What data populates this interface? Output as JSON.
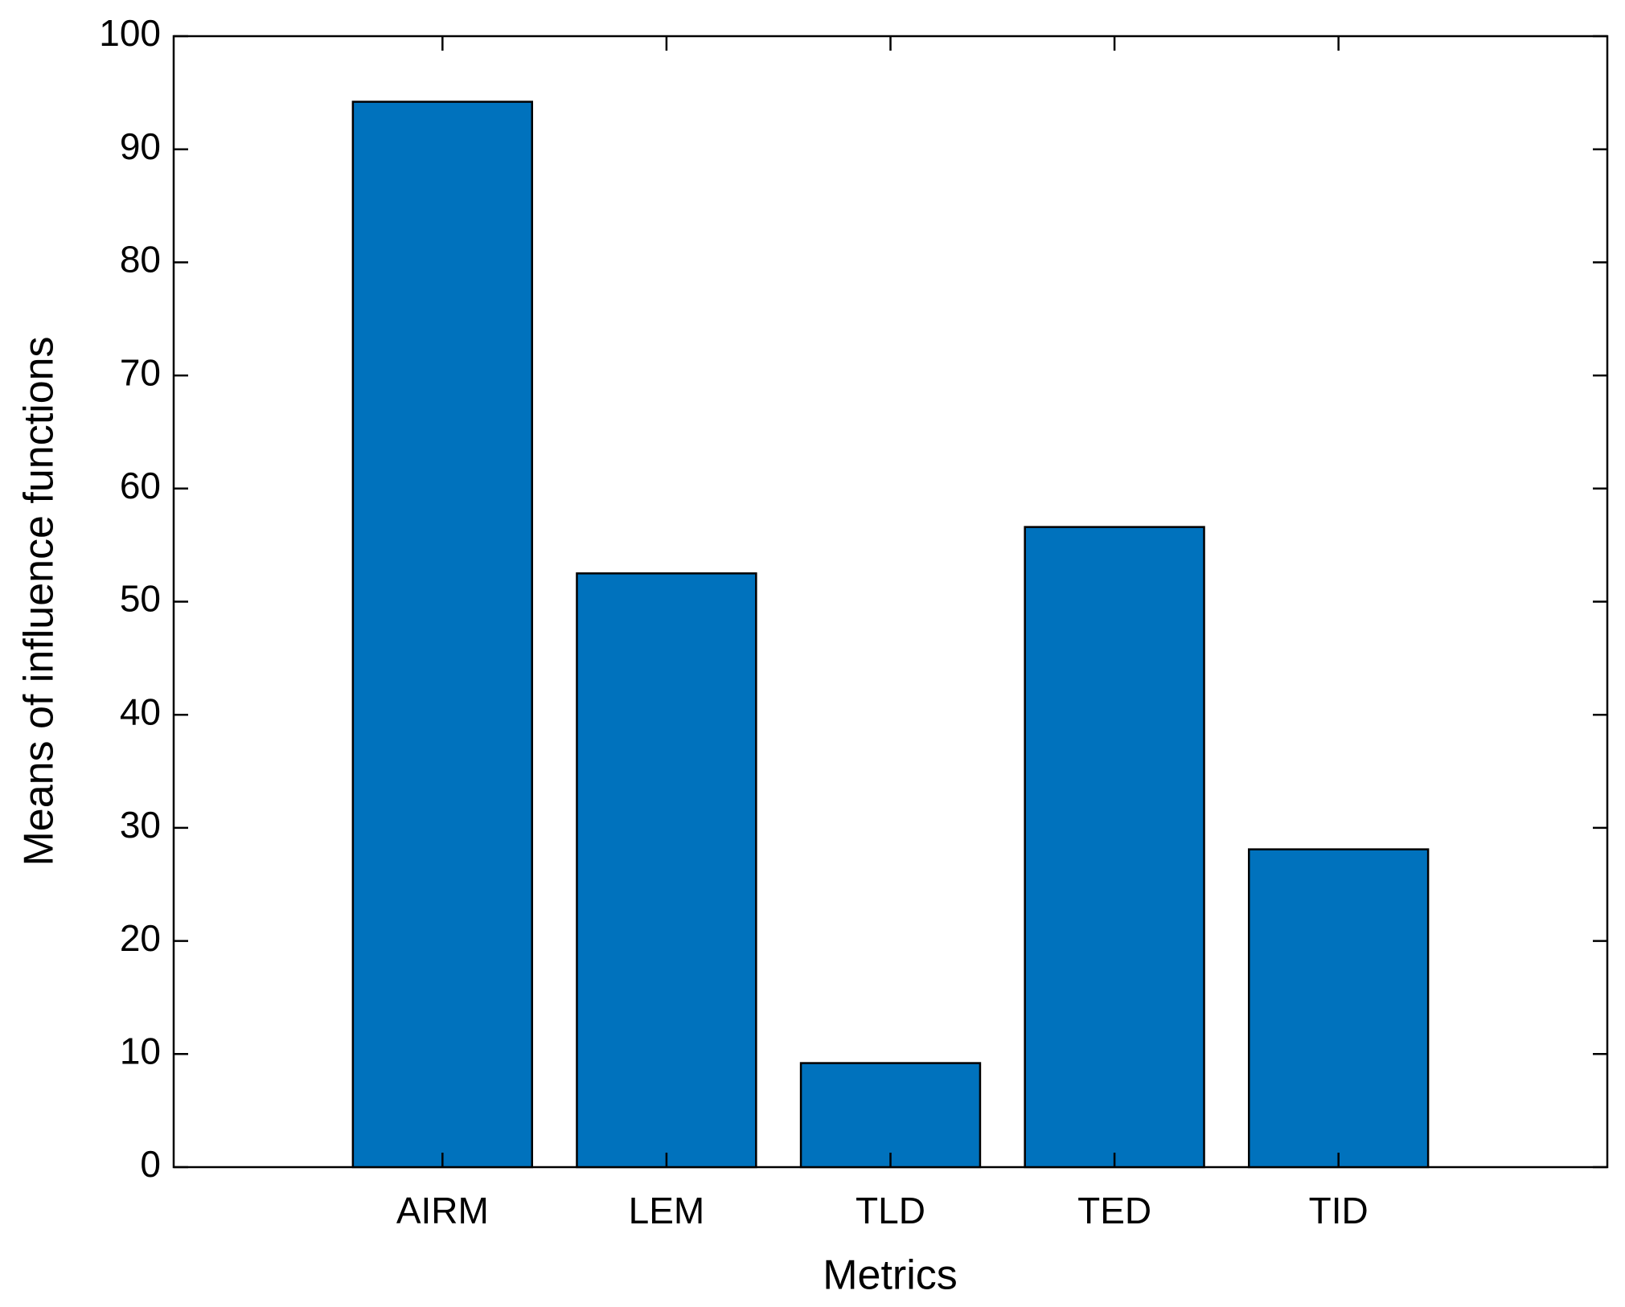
{
  "chart_data": {
    "type": "bar",
    "xlabel": "Metrics",
    "ylabel": "Means of influence functions",
    "categories": [
      "AIRM",
      "LEM",
      "TLD",
      "TED",
      "TID"
    ],
    "values": [
      94.2,
      52.5,
      9.2,
      56.6,
      28.1
    ],
    "color": "#0072bd",
    "ylim": [
      0,
      100
    ],
    "yticks": [
      0,
      10,
      20,
      30,
      40,
      50,
      60,
      70,
      80,
      90,
      100
    ],
    "grid": false
  }
}
